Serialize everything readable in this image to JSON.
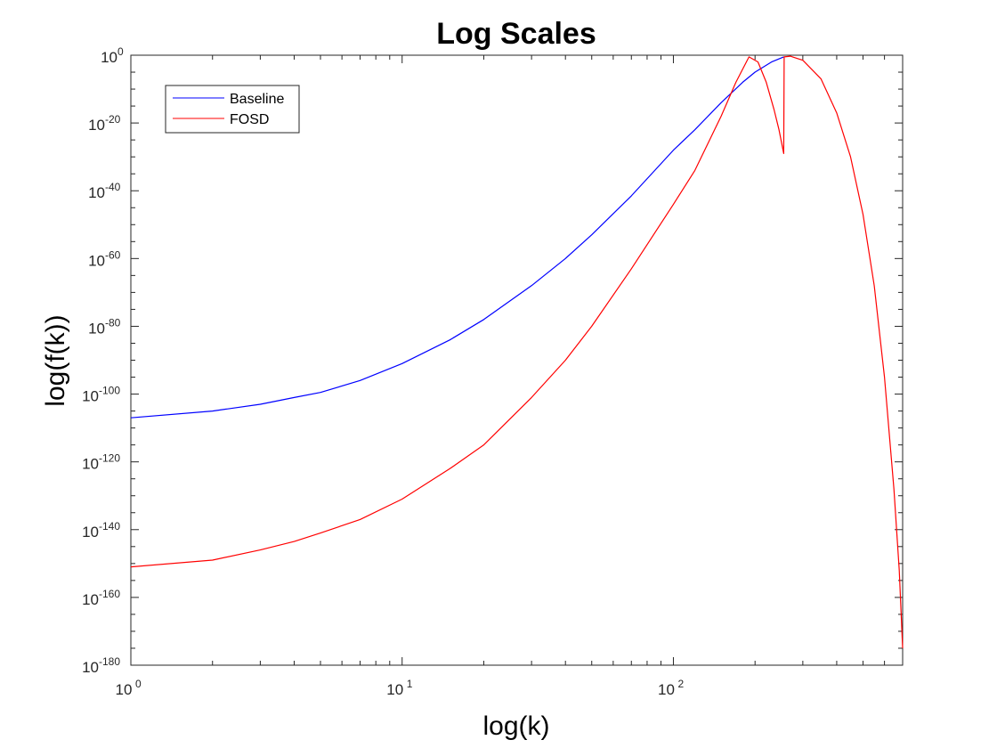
{
  "chart_data": {
    "type": "line",
    "title": "Log Scales",
    "xlabel": "log(k)",
    "ylabel": "log(f(k))",
    "xscale": "log",
    "yscale": "log",
    "xlim": [
      1,
      700
    ],
    "ylim": [
      1e-180,
      1.0
    ],
    "xticks": [
      {
        "value": 1,
        "base": "10",
        "exp": "0"
      },
      {
        "value": 10,
        "base": "10",
        "exp": "1"
      },
      {
        "value": 100,
        "base": "10",
        "exp": "2"
      }
    ],
    "yticks": [
      {
        "exp_value": 0,
        "base": "10",
        "exp": "0"
      },
      {
        "exp_value": -20,
        "base": "10",
        "exp": "-20"
      },
      {
        "exp_value": -40,
        "base": "10",
        "exp": "-40"
      },
      {
        "exp_value": -60,
        "base": "10",
        "exp": "-60"
      },
      {
        "exp_value": -80,
        "base": "10",
        "exp": "-80"
      },
      {
        "exp_value": -100,
        "base": "10",
        "exp": "-100"
      },
      {
        "exp_value": -120,
        "base": "10",
        "exp": "-120"
      },
      {
        "exp_value": -140,
        "base": "10",
        "exp": "-140"
      },
      {
        "exp_value": -160,
        "base": "10",
        "exp": "-160"
      },
      {
        "exp_value": -180,
        "base": "10",
        "exp": "-180"
      }
    ],
    "grid": false,
    "box": true,
    "legend_position": "top-left",
    "series": [
      {
        "name": "Baseline",
        "color": "#0000ff",
        "log10_y_note": "y values given as log10(f(k))",
        "x": [
          1,
          2,
          3,
          4,
          5,
          7,
          10,
          15,
          20,
          30,
          40,
          50,
          70,
          100,
          120,
          150,
          180,
          200,
          230,
          255
        ],
        "log10_y": [
          -107,
          -105,
          -103,
          -101,
          -99.5,
          -96,
          -91,
          -84,
          -78,
          -68,
          -60,
          -53,
          -41.5,
          -28,
          -22,
          -14,
          -8,
          -5,
          -2,
          -0.5
        ]
      },
      {
        "name": "FOSD",
        "color": "#ff0000",
        "x": [
          1,
          2,
          3,
          4,
          5,
          7,
          10,
          15,
          20,
          30,
          40,
          50,
          70,
          100,
          120,
          150,
          170,
          190,
          205,
          220,
          235,
          245,
          255,
          256,
          270,
          300,
          350,
          400,
          450,
          500,
          550,
          600,
          650,
          680,
          700
        ],
        "log10_y": [
          -151,
          -149,
          -146,
          -143.5,
          -141,
          -137,
          -131,
          -122,
          -115,
          -101,
          -90,
          -80,
          -63,
          -44,
          -34,
          -18,
          -8,
          -0.5,
          -2,
          -8,
          -16,
          -22,
          -29,
          -0.5,
          -0.3,
          -1.5,
          -7,
          -17,
          -30,
          -47,
          -68,
          -95,
          -128,
          -152,
          -175
        ]
      }
    ]
  }
}
